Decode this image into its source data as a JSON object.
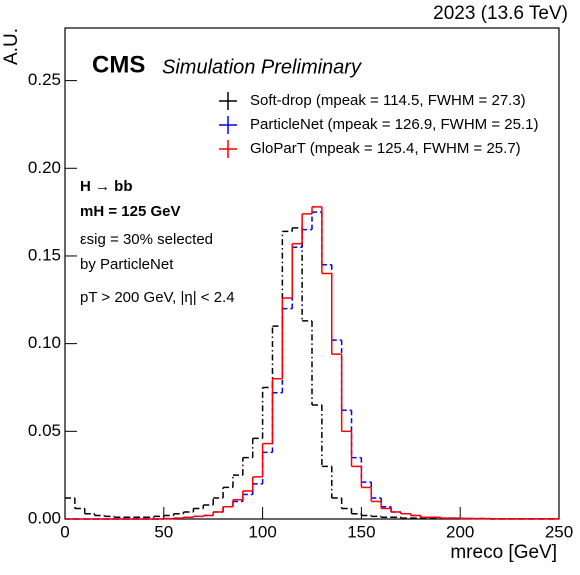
{
  "chart_data": {
    "type": "histogram",
    "top_label": "2023 (13.6 TeV)",
    "title": "CMS",
    "subtitle": "Simulation Preliminary",
    "x_label": "mreco [GeV]",
    "y_label": "A.U.",
    "annotations": [
      "H → bb",
      "mH = 125 GeV",
      "εsig = 30% selected",
      "by ParticleNet",
      "pT > 200 GeV, |η| < 2.4"
    ],
    "bins": [
      0,
      5,
      10,
      15,
      20,
      25,
      30,
      35,
      40,
      45,
      50,
      55,
      60,
      65,
      70,
      75,
      80,
      85,
      90,
      95,
      100,
      105,
      110,
      115,
      120,
      125,
      130,
      135,
      140,
      145,
      150,
      155,
      160,
      165,
      170,
      175,
      180,
      185,
      190,
      195,
      200,
      205,
      210,
      215,
      220,
      225,
      230,
      235,
      240,
      245,
      250
    ],
    "series": [
      {
        "name": "Soft-drop (mpeak = 114.5, FWHM = 27.3)",
        "color": "#000000",
        "dash": "dash-dot",
        "values": [
          0.012,
          0.006,
          0.003,
          0.002,
          0.0015,
          0.001,
          0.001,
          0.001,
          0.001,
          0.0015,
          0.002,
          0.003,
          0.004,
          0.006,
          0.008,
          0.012,
          0.018,
          0.025,
          0.035,
          0.046,
          0.075,
          0.11,
          0.164,
          0.166,
          0.113,
          0.065,
          0.03,
          0.012,
          0.006,
          0.003,
          0.002,
          0.0015,
          0.001,
          0.001,
          0.0005,
          0.0005,
          0.0005,
          0.0005,
          0.0003,
          0.0003,
          0.0002,
          0.0002,
          0.0002,
          0.0001,
          0.0001,
          0.0001,
          0.0001,
          0.0001,
          0.0001,
          0.0001
        ]
      },
      {
        "name": "ParticleNet (mpeak = 126.9, FWHM = 25.1)",
        "color": "#0000ff",
        "dash": "dashed",
        "values": [
          0,
          0,
          0,
          0,
          0,
          0,
          0,
          0,
          0,
          0,
          0.0002,
          0.0005,
          0.001,
          0.0015,
          0.002,
          0.004,
          0.007,
          0.01,
          0.014,
          0.02,
          0.038,
          0.072,
          0.12,
          0.155,
          0.165,
          0.175,
          0.145,
          0.102,
          0.062,
          0.035,
          0.021,
          0.012,
          0.007,
          0.004,
          0.003,
          0.002,
          0.001,
          0.001,
          0.0005,
          0.0005,
          0.0003,
          0.0002,
          0.0002,
          0.0001,
          0.0001,
          0.0001,
          0.0001,
          0.0001,
          0.0001,
          0.0001
        ]
      },
      {
        "name": "GloParT (mpeak = 125.4, FWHM = 25.7)",
        "color": "#ff0000",
        "dash": "solid",
        "values": [
          0,
          0,
          0,
          0,
          0,
          0,
          0,
          0,
          0,
          0,
          0.0002,
          0.0005,
          0.001,
          0.0015,
          0.002,
          0.004,
          0.007,
          0.011,
          0.016,
          0.024,
          0.043,
          0.08,
          0.126,
          0.157,
          0.174,
          0.178,
          0.14,
          0.094,
          0.05,
          0.03,
          0.018,
          0.01,
          0.006,
          0.004,
          0.003,
          0.002,
          0.001,
          0.001,
          0.0005,
          0.0005,
          0.0003,
          0.0002,
          0.0002,
          0.0001,
          0.0001,
          0.0001,
          0.0001,
          0.0001,
          0.0001,
          0.0001
        ]
      }
    ],
    "xlim": [
      0,
      250
    ],
    "xticks": [
      0,
      50,
      100,
      150,
      200,
      250
    ],
    "ylim": [
      0,
      0.28
    ],
    "yticks": [
      {
        "value": 0,
        "label": "0.00"
      },
      {
        "value": 0.05,
        "label": "0.05"
      },
      {
        "value": 0.1,
        "label": "0.10"
      },
      {
        "value": 0.15,
        "label": "0.15"
      },
      {
        "value": 0.2,
        "label": "0.20"
      },
      {
        "value": 0.25,
        "label": "0.25"
      }
    ]
  }
}
